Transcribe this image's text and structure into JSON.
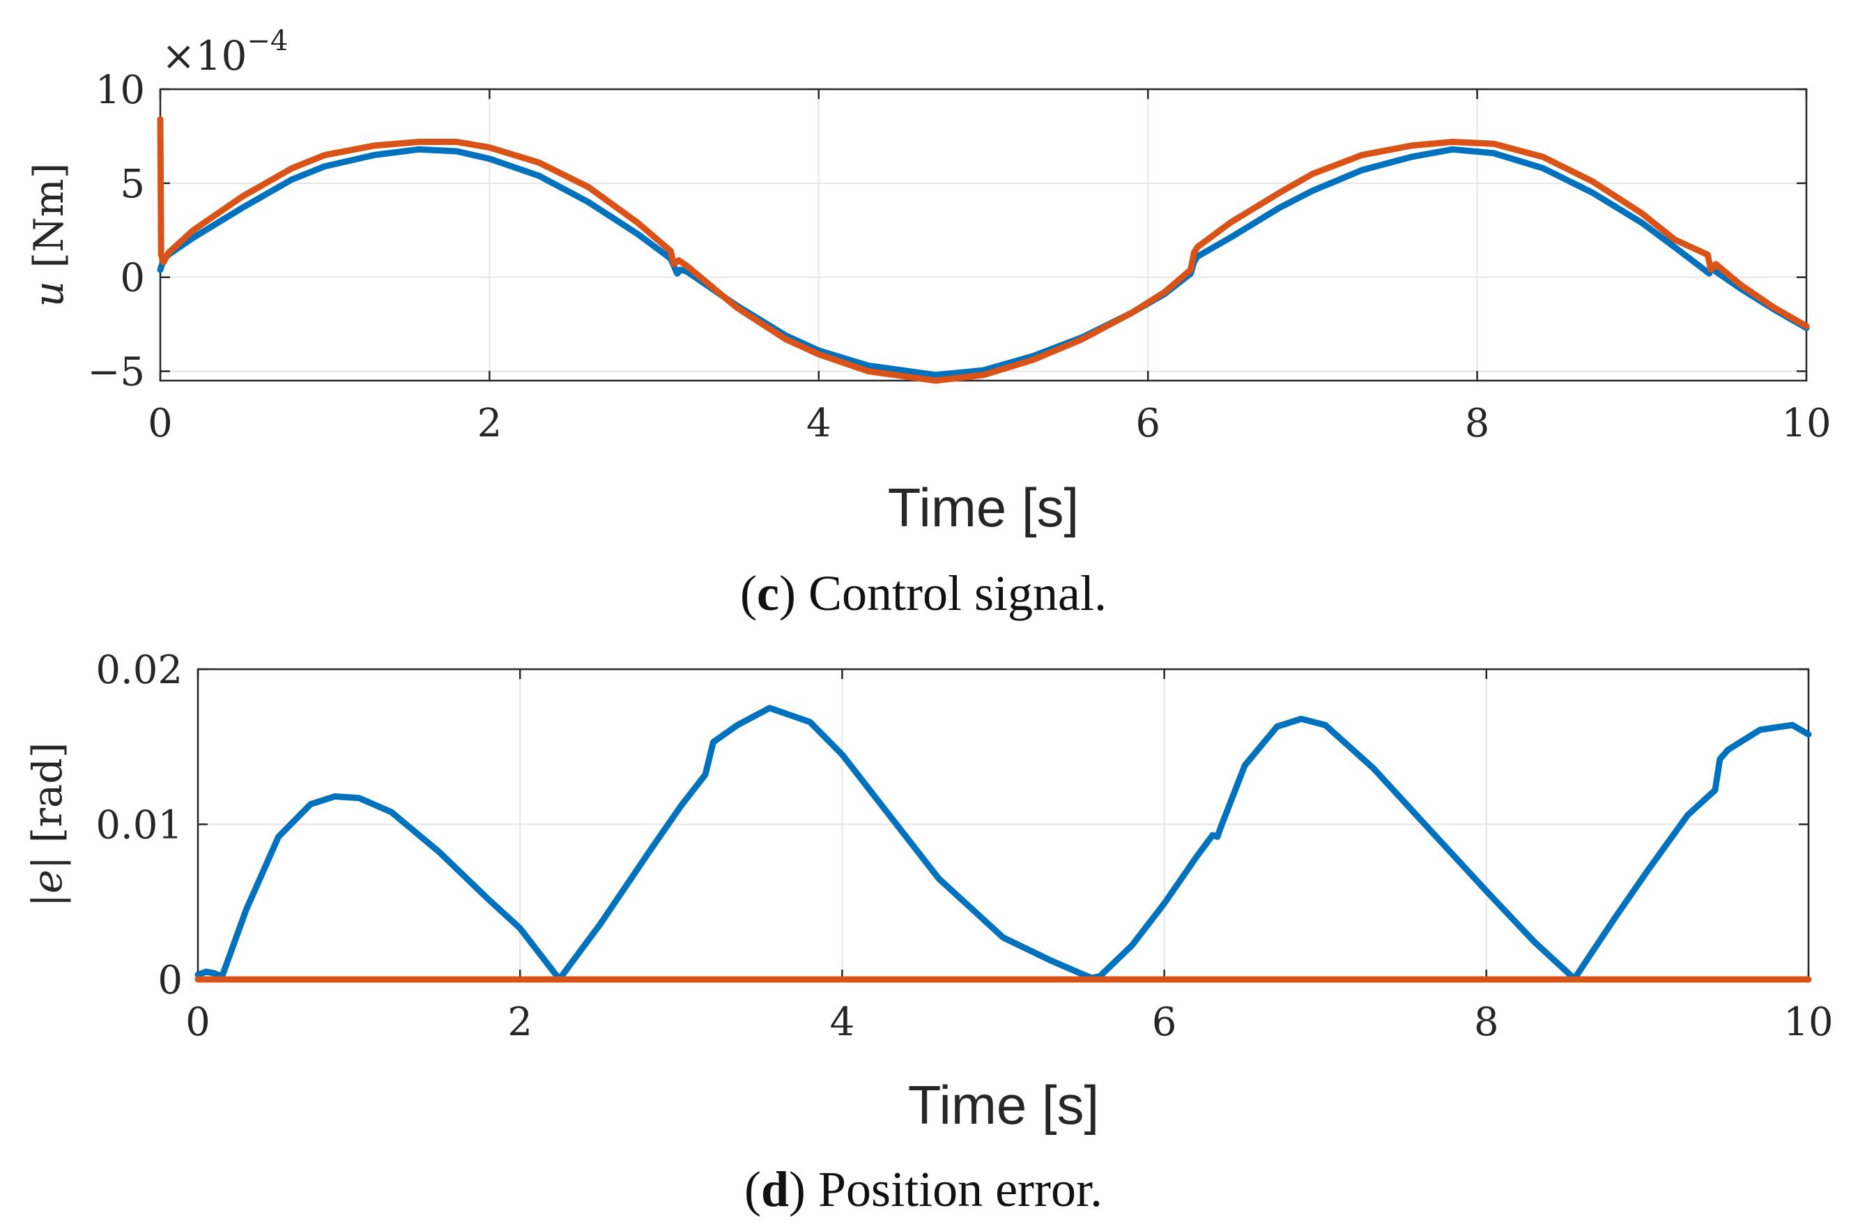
{
  "colors": {
    "series_1": "#0072BD",
    "series_2": "#D95319",
    "grid": "#e5e5e5",
    "axis": "#262626"
  },
  "chart_data": [
    {
      "type": "line",
      "panel_letter": "c",
      "caption": "Control signal.",
      "caption_open": "(",
      "caption_close": ")",
      "xlabel": "Time [s]",
      "ylabel_var": "u",
      "ylabel_unit": "[Nm]",
      "exponent_base": "×10",
      "exponent_power": "−4",
      "xlim": [
        0,
        10
      ],
      "ylim": [
        -5.5,
        10
      ],
      "xticks": [
        0,
        2,
        4,
        6,
        8,
        10
      ],
      "xtick_labels": [
        "0",
        "2",
        "4",
        "6",
        "8",
        "10"
      ],
      "yticks": [
        -5,
        0,
        5,
        10
      ],
      "ytick_labels": [
        "−5",
        "0",
        "5",
        "10"
      ],
      "grid": true,
      "series": [
        {
          "color": "#0072BD",
          "x": [
            0,
            0.02,
            0.05,
            0.2,
            0.5,
            0.8,
            1.0,
            1.3,
            1.57,
            1.8,
            2.0,
            2.3,
            2.6,
            2.9,
            3.1,
            3.14,
            3.16,
            3.2,
            3.5,
            3.8,
            4.0,
            4.3,
            4.71,
            5.0,
            5.3,
            5.6,
            5.9,
            6.1,
            6.26,
            6.28,
            6.3,
            6.5,
            6.8,
            7.0,
            7.3,
            7.6,
            7.85,
            8.1,
            8.4,
            8.7,
            9.0,
            9.2,
            9.41,
            9.42,
            9.45,
            9.6,
            9.8,
            10
          ],
          "y": [
            0.4,
            0.9,
            1.2,
            2.1,
            3.7,
            5.2,
            5.9,
            6.5,
            6.8,
            6.7,
            6.3,
            5.4,
            4.0,
            2.3,
            1.0,
            0.2,
            0.4,
            0.3,
            -1.5,
            -3.1,
            -3.9,
            -4.7,
            -5.2,
            -4.95,
            -4.2,
            -3.2,
            -1.9,
            -0.9,
            0.2,
            0.8,
            1.1,
            2.1,
            3.7,
            4.6,
            5.7,
            6.4,
            6.8,
            6.6,
            5.8,
            4.5,
            2.9,
            1.6,
            0.2,
            0.5,
            0.3,
            -0.6,
            -1.7,
            -2.7
          ]
        },
        {
          "color": "#D95319",
          "x": [
            0,
            0.005,
            0.02,
            0.05,
            0.2,
            0.5,
            0.8,
            1.0,
            1.3,
            1.57,
            1.8,
            2.0,
            2.3,
            2.6,
            2.9,
            3.1,
            3.12,
            3.15,
            3.2,
            3.5,
            3.8,
            4.0,
            4.3,
            4.71,
            5.0,
            5.3,
            5.6,
            5.9,
            6.1,
            6.26,
            6.28,
            6.3,
            6.5,
            6.8,
            7.0,
            7.3,
            7.6,
            7.85,
            8.1,
            8.4,
            8.7,
            9.0,
            9.2,
            9.4,
            9.42,
            9.45,
            9.6,
            9.8,
            10
          ],
          "y": [
            8.4,
            1.2,
            0.8,
            1.3,
            2.5,
            4.3,
            5.8,
            6.5,
            7.0,
            7.2,
            7.2,
            6.9,
            6.1,
            4.8,
            2.9,
            1.4,
            0.7,
            0.9,
            0.6,
            -1.6,
            -3.3,
            -4.1,
            -5.0,
            -5.5,
            -5.2,
            -4.4,
            -3.3,
            -1.9,
            -0.8,
            0.4,
            1.3,
            1.6,
            2.9,
            4.5,
            5.5,
            6.5,
            7.0,
            7.2,
            7.1,
            6.4,
            5.1,
            3.4,
            2.0,
            1.2,
            0.4,
            0.7,
            -0.4,
            -1.6,
            -2.6
          ]
        }
      ]
    },
    {
      "type": "line",
      "panel_letter": "d",
      "caption": "Position error.",
      "caption_open": "(",
      "caption_close": ")",
      "xlabel": "Time [s]",
      "ylabel_var": "|e|",
      "ylabel_unit": "[rad]",
      "xlim": [
        0,
        10
      ],
      "ylim": [
        0,
        0.02
      ],
      "xticks": [
        0,
        2,
        4,
        6,
        8,
        10
      ],
      "xtick_labels": [
        "0",
        "2",
        "4",
        "6",
        "8",
        "10"
      ],
      "yticks": [
        0,
        0.01,
        0.02
      ],
      "ytick_labels": [
        "0",
        "0.01",
        "0.02"
      ],
      "grid": true,
      "series": [
        {
          "color": "#0072BD",
          "x": [
            0,
            0.05,
            0.1,
            0.15,
            0.3,
            0.5,
            0.7,
            0.85,
            1.0,
            1.2,
            1.5,
            1.8,
            2.0,
            2.23,
            2.25,
            2.5,
            2.8,
            3.0,
            3.15,
            3.2,
            3.35,
            3.55,
            3.8,
            4.0,
            4.3,
            4.6,
            5.0,
            5.3,
            5.5,
            5.55,
            5.6,
            5.8,
            6.0,
            6.2,
            6.3,
            6.33,
            6.35,
            6.5,
            6.7,
            6.85,
            7.0,
            7.3,
            7.6,
            8.0,
            8.3,
            8.53,
            8.55,
            8.8,
            9.0,
            9.25,
            9.42,
            9.45,
            9.5,
            9.7,
            9.9,
            10
          ],
          "y": [
            0.0003,
            0.0005,
            0.0004,
            0.0002,
            0.0045,
            0.0092,
            0.0113,
            0.0118,
            0.0117,
            0.0108,
            0.0082,
            0.0052,
            0.0033,
            0.0002,
            0.0001,
            0.0036,
            0.0082,
            0.0112,
            0.0132,
            0.0153,
            0.0164,
            0.0175,
            0.0166,
            0.0145,
            0.0105,
            0.0065,
            0.0027,
            0.0012,
            0.0003,
            0.0001,
            0.0002,
            0.0022,
            0.0049,
            0.0079,
            0.0093,
            0.0092,
            0.0098,
            0.0138,
            0.0163,
            0.0168,
            0.0164,
            0.0136,
            0.0102,
            0.0057,
            0.0024,
            0.0002,
            0.0001,
            0.004,
            0.007,
            0.0106,
            0.0122,
            0.0142,
            0.0148,
            0.0161,
            0.0164,
            0.0158
          ]
        },
        {
          "color": "#D95319",
          "x": [
            0,
            2,
            4,
            6,
            8,
            10
          ],
          "y": [
            0,
            0,
            0,
            0,
            0,
            0
          ]
        }
      ]
    }
  ]
}
